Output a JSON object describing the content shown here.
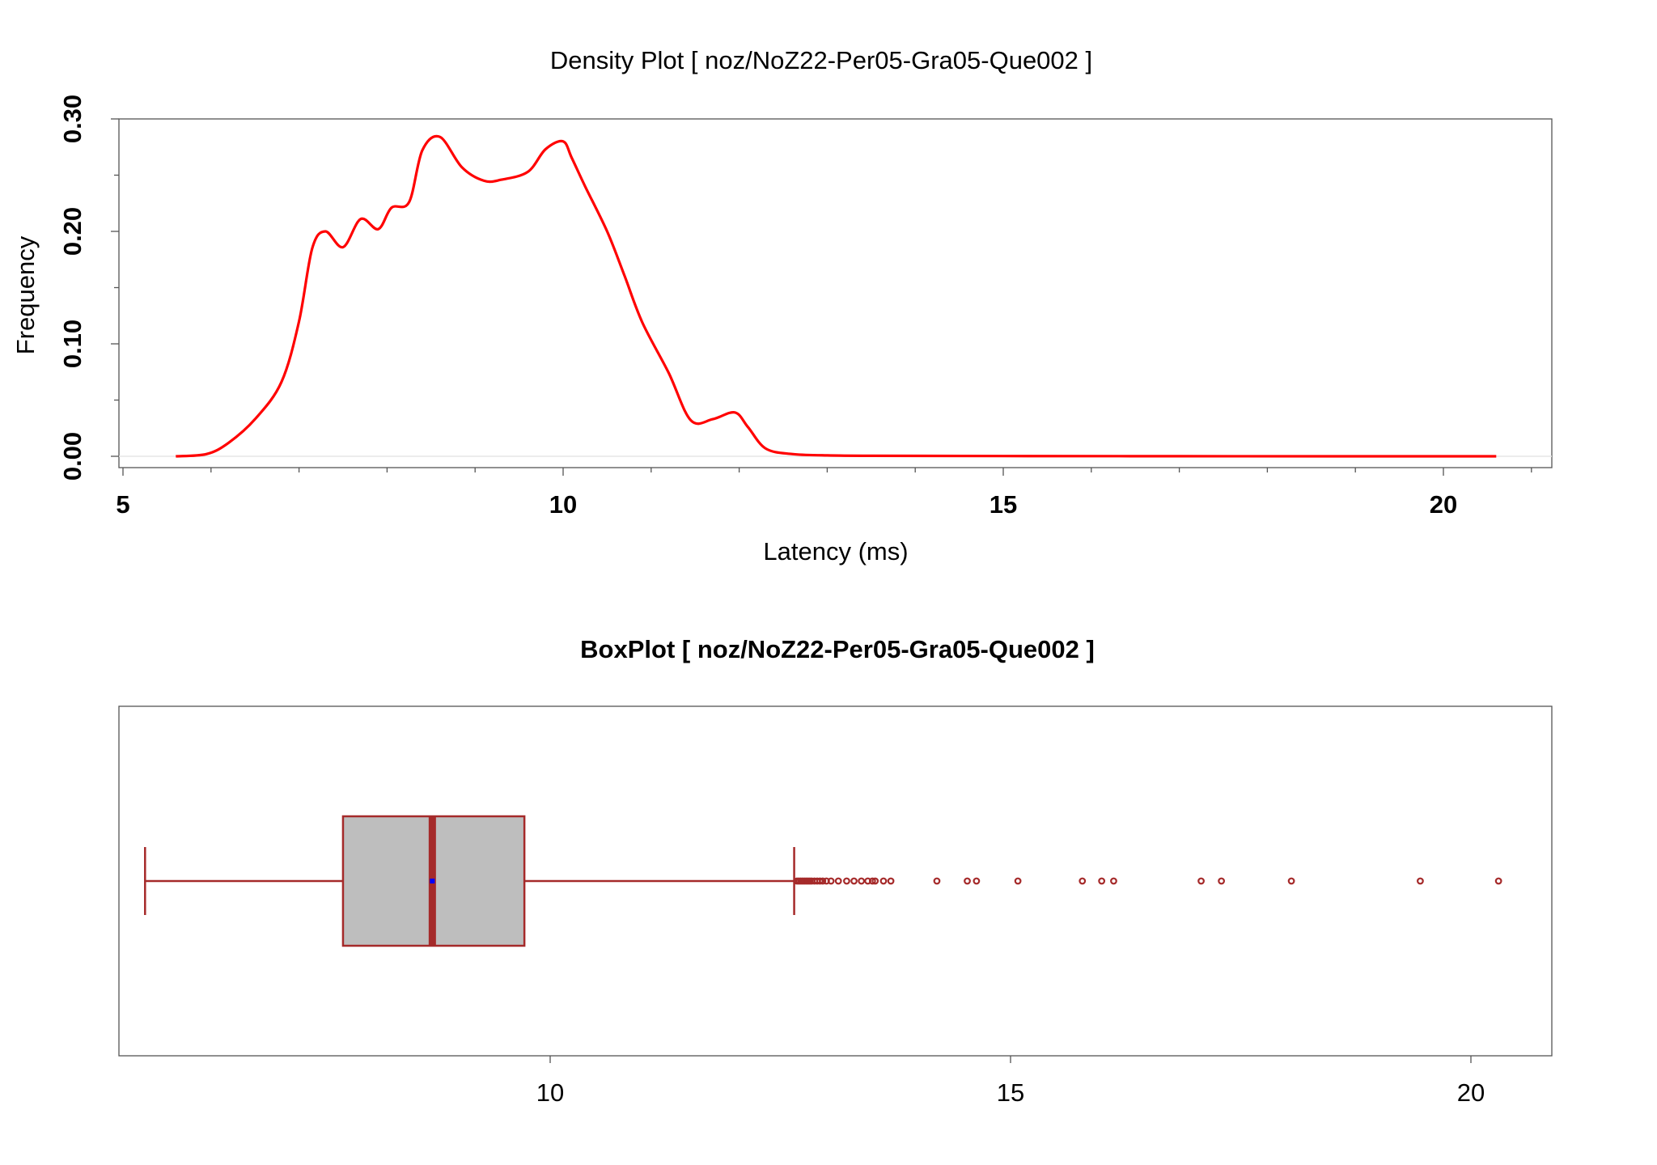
{
  "chart_data": [
    {
      "type": "line",
      "title": "Density Plot [ noz/NoZ22-Per05-Gra05-Que002 ]",
      "xlabel": "Latency (ms)",
      "ylabel": "Frequency",
      "xlim": [
        5,
        21
      ],
      "ylim": [
        -0.01,
        0.3
      ],
      "x_ticks": [
        "5",
        "10",
        "15",
        "20"
      ],
      "y_ticks": [
        "0.00",
        "0.10",
        "0.20",
        "0.30"
      ],
      "grid": false,
      "series": [
        {
          "color": "#ff0000",
          "x": [
            5.6,
            5.95,
            6.2,
            6.5,
            6.8,
            7.0,
            7.15,
            7.3,
            7.5,
            7.7,
            7.9,
            8.05,
            8.25,
            8.4,
            8.6,
            8.85,
            9.1,
            9.3,
            9.6,
            9.8,
            10.0,
            10.1,
            10.25,
            10.5,
            10.7,
            10.9,
            11.2,
            11.45,
            11.7,
            11.95,
            12.1,
            12.3,
            12.6,
            13.0,
            13.5,
            15.0,
            17.0,
            19.0,
            20.6
          ],
          "values": [
            0.0,
            0.002,
            0.012,
            0.033,
            0.066,
            0.12,
            0.185,
            0.2,
            0.186,
            0.211,
            0.202,
            0.221,
            0.226,
            0.272,
            0.284,
            0.257,
            0.245,
            0.246,
            0.253,
            0.273,
            0.28,
            0.265,
            0.24,
            0.2,
            0.16,
            0.119,
            0.074,
            0.032,
            0.033,
            0.039,
            0.026,
            0.007,
            0.002,
            0.0008,
            0.0004,
            0.0002,
            0.0001,
            0.0,
            0.0
          ]
        }
      ]
    },
    {
      "type": "box",
      "title": "BoxPlot [ noz/NoZ22-Per05-Gra05-Que002 ]",
      "orientation": "horizontal",
      "xlim": [
        5.3,
        20.9
      ],
      "x_ticks": [
        "10",
        "15",
        "20"
      ],
      "whisker_low": 5.6,
      "q1": 7.75,
      "median": 8.72,
      "mean": 8.72,
      "q3": 9.72,
      "whisker_high": 12.65,
      "box_fill": "#bebebe",
      "border_color": "#a52a2a",
      "mean_color": "#0000ff",
      "outliers": [
        12.68,
        12.7,
        12.72,
        12.74,
        12.76,
        12.78,
        12.8,
        12.82,
        12.84,
        12.87,
        12.9,
        12.93,
        12.96,
        13.0,
        13.05,
        13.13,
        13.22,
        13.3,
        13.38,
        13.45,
        13.5,
        13.53,
        13.62,
        13.7,
        14.2,
        14.53,
        14.63,
        15.08,
        15.78,
        15.99,
        16.12,
        17.07,
        17.29,
        18.05,
        19.45,
        20.3
      ]
    }
  ]
}
